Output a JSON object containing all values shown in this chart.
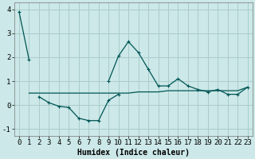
{
  "title": "",
  "xlabel": "Humidex (Indice chaleur)",
  "ylabel": "",
  "background_color": "#cce8e8",
  "grid_color": "#aacccc",
  "line_color": "#005555",
  "x_values": [
    0,
    1,
    2,
    3,
    4,
    5,
    6,
    7,
    8,
    9,
    10,
    11,
    12,
    13,
    14,
    15,
    16,
    17,
    18,
    19,
    20,
    21,
    22,
    23
  ],
  "line1_y": [
    3.9,
    1.9,
    null,
    null,
    null,
    null,
    null,
    null,
    null,
    1.0,
    2.05,
    2.65,
    2.2,
    1.5,
    0.8,
    0.8,
    1.1,
    0.8,
    0.65,
    0.55,
    0.65,
    0.45,
    0.45,
    0.75
  ],
  "line2_y": [
    null,
    null,
    0.35,
    0.1,
    -0.05,
    -0.1,
    -0.55,
    -0.65,
    -0.65,
    0.2,
    0.45,
    null,
    null,
    null,
    null,
    null,
    null,
    null,
    null,
    null,
    null,
    null,
    null,
    null
  ],
  "line3_y": [
    null,
    0.5,
    0.5,
    0.5,
    0.5,
    0.5,
    0.5,
    0.5,
    0.5,
    0.5,
    0.5,
    0.5,
    0.55,
    0.55,
    0.55,
    0.6,
    0.6,
    0.6,
    0.6,
    0.6,
    0.6,
    0.6,
    0.6,
    0.75
  ],
  "ylim": [
    -1.3,
    4.3
  ],
  "xlim": [
    -0.5,
    23.5
  ],
  "yticks": [
    -1,
    0,
    1,
    2,
    3,
    4
  ],
  "xticks": [
    0,
    1,
    2,
    3,
    4,
    5,
    6,
    7,
    8,
    9,
    10,
    11,
    12,
    13,
    14,
    15,
    16,
    17,
    18,
    19,
    20,
    21,
    22,
    23
  ],
  "xlabel_fontsize": 7,
  "tick_fontsize": 6.5
}
